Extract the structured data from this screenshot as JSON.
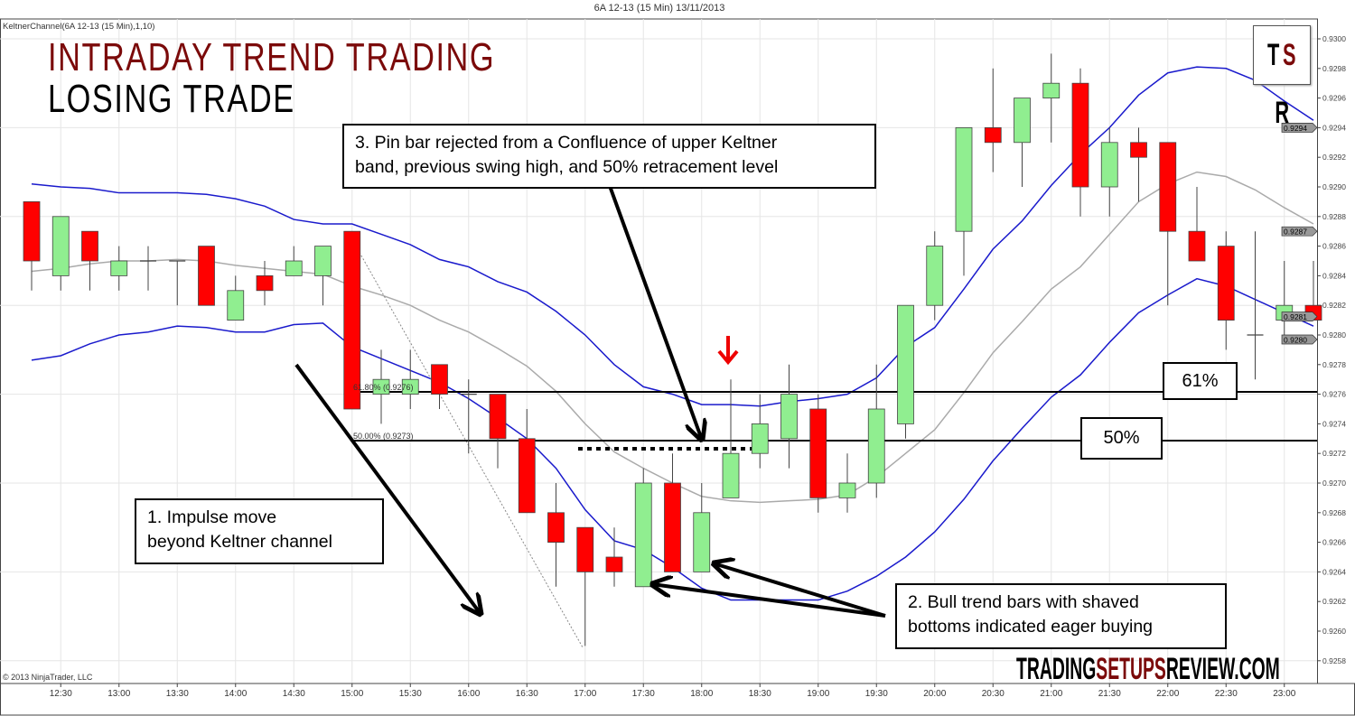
{
  "header": {
    "title": "6A 12-13 (15 Min)  13/11/2013",
    "indicator": "KeltnerChannel(6A 12-13 (15 Min),1,10)",
    "copyright": "© 2013 NinjaTrader, LLC"
  },
  "headline": {
    "line1": "INTRADAY TREND TRADING",
    "line2": "LOSING TRADE"
  },
  "logo": {
    "text_t": "T",
    "text_s": "S",
    "text_r": "R"
  },
  "watermark": {
    "part1": "TRADING",
    "part2": "SETUPS",
    "part3": "REVIEW.COM"
  },
  "annotations": {
    "note1_line1": "1. Impulse move",
    "note1_line2": "beyond Keltner channel",
    "note2_line1": "2. Bull trend bars with shaved",
    "note2_line2": "bottoms indicated eager buying",
    "note3_line1": "3. Pin bar rejected from a Confluence of upper Keltner",
    "note3_line2": "band, previous swing high, and 50% retracement level",
    "fib61_tag": "61%",
    "fib50_tag": "50%",
    "fib61_label": "61.80% (0.9276)",
    "fib50_label": "50.00% (0.9273)"
  },
  "colors": {
    "bull": "#90ee90",
    "bear": "#ff0000",
    "band": "#1a1acc",
    "middle": "#aaaaaa",
    "brand": "#7b0a0a"
  },
  "chart_data": {
    "type": "candlestick",
    "title": "6A 12-13 (15 Min)  13/11/2013",
    "x": [
      "12:15",
      "12:30",
      "12:45",
      "13:00",
      "13:15",
      "13:30",
      "13:45",
      "14:00",
      "14:15",
      "14:30",
      "14:45",
      "15:00",
      "15:15",
      "15:30",
      "15:45",
      "16:00",
      "16:15",
      "16:30",
      "16:45",
      "17:00",
      "17:15",
      "17:30",
      "17:45",
      "18:00",
      "18:15",
      "18:30",
      "18:45",
      "19:00",
      "19:15",
      "19:30",
      "19:45",
      "20:00",
      "20:15",
      "20:30",
      "20:45",
      "21:00",
      "21:15",
      "21:30",
      "21:45",
      "22:00",
      "22:15",
      "22:30",
      "22:45",
      "23:00",
      "23:15"
    ],
    "x_tick_labels": [
      "12:30",
      "13:00",
      "13:30",
      "14:00",
      "14:30",
      "15:00",
      "15:30",
      "16:00",
      "16:30",
      "17:00",
      "17:30",
      "18:00",
      "18:30",
      "19:00",
      "19:30",
      "20:00",
      "20:30",
      "21:00",
      "21:30",
      "22:00",
      "22:30",
      "23:00"
    ],
    "open": [
      0.9289,
      0.9284,
      0.9287,
      0.9284,
      0.9285,
      0.9285,
      0.9286,
      0.9281,
      0.9284,
      0.9284,
      0.9284,
      0.9287,
      0.9276,
      0.9276,
      0.9278,
      0.9276,
      0.9276,
      0.9273,
      0.9268,
      0.9267,
      0.9265,
      0.9263,
      0.927,
      0.9264,
      0.9269,
      0.9272,
      0.9273,
      0.9275,
      0.9269,
      0.927,
      0.9274,
      0.9282,
      0.9287,
      0.9294,
      0.9293,
      0.9296,
      0.9297,
      0.929,
      0.9293,
      0.9293,
      0.9287,
      0.9286,
      0.928,
      0.9281,
      0.9282
    ],
    "high": [
      0.9289,
      0.9288,
      0.9287,
      0.9286,
      0.9286,
      0.9285,
      0.9286,
      0.9284,
      0.9285,
      0.9286,
      0.9286,
      0.9287,
      0.9279,
      0.9279,
      0.9278,
      0.9277,
      0.9276,
      0.9275,
      0.927,
      0.9267,
      0.9267,
      0.9271,
      0.9272,
      0.927,
      0.9277,
      0.9276,
      0.9278,
      0.9276,
      0.9272,
      0.9278,
      0.9282,
      0.9287,
      0.9294,
      0.9298,
      0.9296,
      0.9299,
      0.9298,
      0.9294,
      0.9294,
      0.9293,
      0.929,
      0.9287,
      0.9287,
      0.9285,
      0.9285
    ],
    "low": [
      0.9283,
      0.9283,
      0.9283,
      0.9283,
      0.9283,
      0.9282,
      0.9282,
      0.9281,
      0.9282,
      0.9284,
      0.9282,
      0.9275,
      0.9274,
      0.9275,
      0.9275,
      0.9272,
      0.9271,
      0.9268,
      0.9263,
      0.9259,
      0.9263,
      0.9263,
      0.9264,
      0.9264,
      0.9269,
      0.9271,
      0.9271,
      0.9268,
      0.9268,
      0.9269,
      0.9273,
      0.9281,
      0.9284,
      0.9291,
      0.929,
      0.9293,
      0.9288,
      0.9288,
      0.9289,
      0.9282,
      0.9285,
      0.9279,
      0.9277,
      0.928,
      0.9281
    ],
    "close": [
      0.9285,
      0.9288,
      0.9285,
      0.9285,
      0.9285,
      0.9285,
      0.9282,
      0.9283,
      0.9283,
      0.9285,
      0.9286,
      0.9275,
      0.9277,
      0.9277,
      0.9276,
      0.9276,
      0.9273,
      0.9268,
      0.9266,
      0.9264,
      0.9264,
      0.927,
      0.9264,
      0.9268,
      0.9272,
      0.9274,
      0.9276,
      0.9269,
      0.927,
      0.9275,
      0.9282,
      0.9286,
      0.9294,
      0.9293,
      0.9296,
      0.9297,
      0.929,
      0.9293,
      0.9292,
      0.9287,
      0.9285,
      0.9281,
      0.928,
      0.9282,
      0.9281
    ],
    "series": [
      {
        "name": "upper",
        "values": [
          0.92902,
          0.929,
          0.92899,
          0.92896,
          0.92896,
          0.92896,
          0.92895,
          0.92892,
          0.92887,
          0.92878,
          0.92875,
          0.92875,
          0.92868,
          0.92861,
          0.92851,
          0.92846,
          0.92836,
          0.92829,
          0.92816,
          0.928,
          0.9278,
          0.92765,
          0.9276,
          0.92753,
          0.92753,
          0.92752,
          0.92755,
          0.92757,
          0.9276,
          0.92771,
          0.92792,
          0.92805,
          0.92831,
          0.92858,
          0.92877,
          0.92901,
          0.92922,
          0.9294,
          0.92962,
          0.92977,
          0.92981,
          0.9298,
          0.92972,
          0.92958,
          0.92945
        ]
      },
      {
        "name": "middle",
        "values": [
          0.92843,
          0.92845,
          0.92848,
          0.9285,
          0.9285,
          0.92851,
          0.9285,
          0.92847,
          0.92845,
          0.92843,
          0.92841,
          0.92833,
          0.92827,
          0.9282,
          0.9281,
          0.92802,
          0.92791,
          0.92779,
          0.92762,
          0.9274,
          0.92721,
          0.9271,
          0.927,
          0.92691,
          0.92688,
          0.92687,
          0.92688,
          0.92689,
          0.92692,
          0.92704,
          0.9272,
          0.92736,
          0.92761,
          0.92788,
          0.92809,
          0.92831,
          0.92846,
          0.92868,
          0.9289,
          0.92902,
          0.9291,
          0.92907,
          0.92898,
          0.92886,
          0.92875
        ]
      },
      {
        "name": "lower",
        "values": [
          0.92783,
          0.92786,
          0.92794,
          0.928,
          0.92802,
          0.92806,
          0.92805,
          0.92802,
          0.92802,
          0.92807,
          0.92808,
          0.92792,
          0.92784,
          0.92776,
          0.92768,
          0.92757,
          0.92744,
          0.9273,
          0.9271,
          0.92682,
          0.92661,
          0.92655,
          0.92643,
          0.92629,
          0.92621,
          0.92621,
          0.92621,
          0.92621,
          0.92627,
          0.92637,
          0.9265,
          0.92667,
          0.92689,
          0.92715,
          0.92737,
          0.92758,
          0.92773,
          0.92795,
          0.92815,
          0.92827,
          0.92838,
          0.92833,
          0.92824,
          0.92815,
          0.92806
        ]
      }
    ],
    "fib_levels": [
      {
        "label": "61.80%",
        "value": 0.9276
      },
      {
        "label": "50.00%",
        "value": 0.9273
      }
    ],
    "y_ticks": [
      "0.9300",
      "0.9298",
      "0.9296",
      "0.9294",
      "0.9292",
      "0.9290",
      "0.9288",
      "0.9286",
      "0.9284",
      "0.9282",
      "0.9280",
      "0.9278",
      "0.9276",
      "0.9274",
      "0.9272",
      "0.9270",
      "0.9268",
      "0.9266",
      "0.9264",
      "0.9262",
      "0.9260",
      "0.9258"
    ],
    "price_markers": [
      "0.9294",
      "0.9287",
      "0.9281",
      "0.9280"
    ],
    "ylim": [
      0.92565,
      0.93013
    ],
    "grid": true
  }
}
